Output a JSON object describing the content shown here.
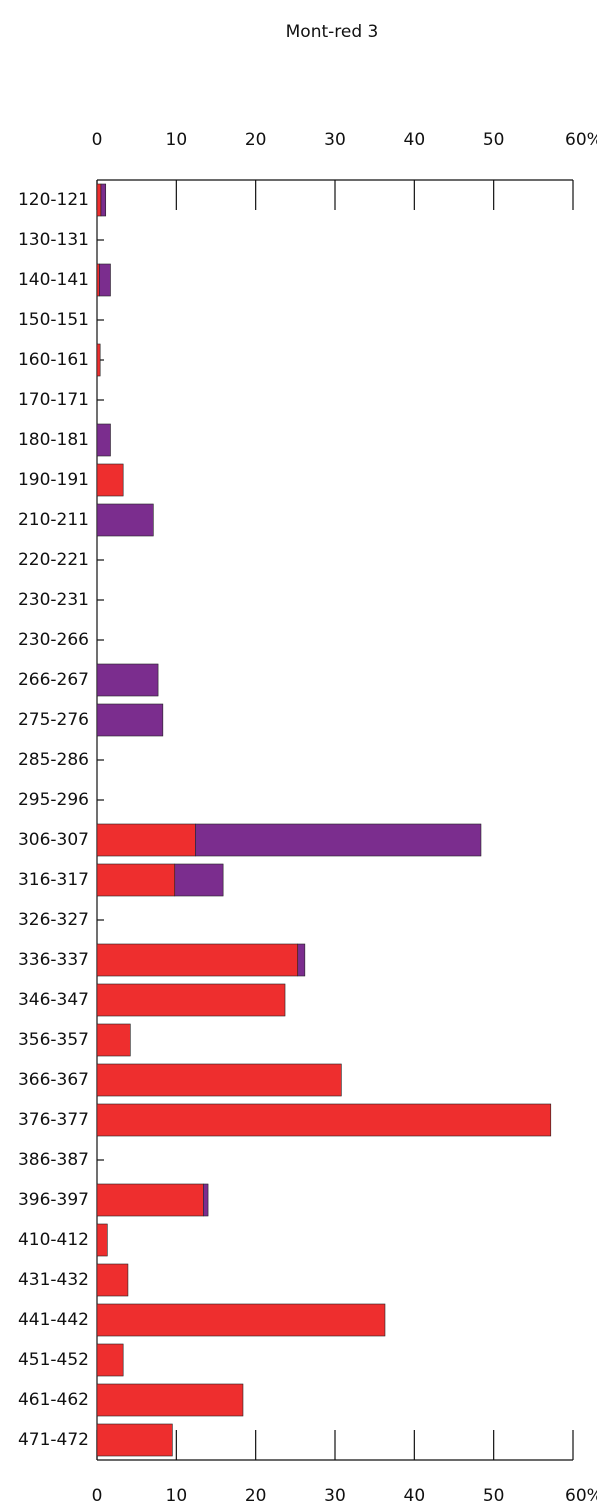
{
  "chart_data": {
    "type": "bar",
    "orientation": "horizontal",
    "stacked": true,
    "title": "Mont-red 3",
    "categories": [
      "120-121",
      "130-131",
      "140-141",
      "150-151",
      "160-161",
      "170-171",
      "180-181",
      "190-191",
      "210-211",
      "220-221",
      "230-231",
      "230-266",
      "266-267",
      "275-276",
      "285-286",
      "295-296",
      "306-307",
      "316-317",
      "326-327",
      "336-337",
      "346-347",
      "356-357",
      "366-367",
      "376-377",
      "386-387",
      "396-397",
      "410-412",
      "431-432",
      "441-442",
      "451-452",
      "461-462",
      "471-472"
    ],
    "series": [
      {
        "color": "#ee2e2e",
        "values": [
          0.5,
          0,
          0.3,
          0,
          0.4,
          0,
          0,
          3.3,
          0,
          0,
          0,
          0,
          0,
          0,
          0,
          0,
          12.4,
          9.8,
          0,
          25.3,
          23.7,
          4.2,
          30.8,
          57.2,
          0,
          13.4,
          1.3,
          3.9,
          36.3,
          3.3,
          18.4,
          9.5
        ]
      },
      {
        "color": "#7b2d8e",
        "values": [
          0.6,
          0,
          1.4,
          0,
          0,
          0,
          1.7,
          0,
          7.1,
          0,
          0,
          0,
          7.7,
          8.3,
          0,
          0,
          36.0,
          6.1,
          0,
          0.9,
          0,
          0,
          0,
          0,
          0,
          0.6,
          0,
          0,
          0,
          0,
          0,
          0
        ]
      }
    ],
    "xlim": [
      0,
      60
    ],
    "xticks": [
      0,
      10,
      20,
      30,
      40,
      50,
      {
        "value": 60,
        "label": "60%"
      }
    ]
  }
}
